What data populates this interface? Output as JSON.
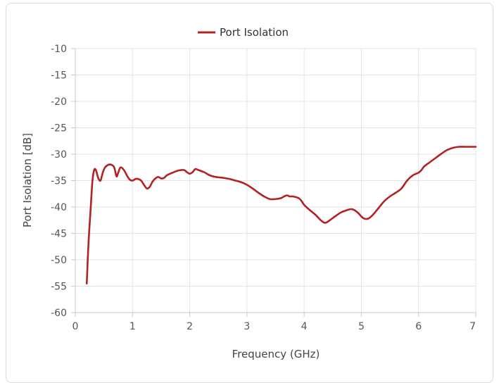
{
  "chart_data": {
    "type": "line",
    "xlabel": "Frequency (GHz)",
    "ylabel": "Port Isolation [dB]",
    "xlim": [
      0,
      7
    ],
    "ylim": [
      -60,
      -10
    ],
    "xticks": [
      0,
      1,
      2,
      3,
      4,
      5,
      6,
      7
    ],
    "yticks": [
      -10,
      -15,
      -20,
      -25,
      -30,
      -35,
      -40,
      -45,
      -50,
      -55,
      -60
    ],
    "grid": true,
    "legend": "top-center",
    "series": [
      {
        "name": "Port Isolation",
        "color": "#b22222",
        "x": [
          0.2,
          0.23,
          0.27,
          0.3,
          0.33,
          0.36,
          0.4,
          0.44,
          0.48,
          0.52,
          0.58,
          0.63,
          0.68,
          0.72,
          0.75,
          0.79,
          0.85,
          0.9,
          0.95,
          1.0,
          1.05,
          1.1,
          1.15,
          1.2,
          1.25,
          1.3,
          1.35,
          1.4,
          1.45,
          1.5,
          1.55,
          1.6,
          1.7,
          1.8,
          1.9,
          1.95,
          2.0,
          2.05,
          2.1,
          2.15,
          2.25,
          2.35,
          2.45,
          2.6,
          2.7,
          2.8,
          2.9,
          3.0,
          3.1,
          3.2,
          3.3,
          3.4,
          3.5,
          3.6,
          3.65,
          3.7,
          3.75,
          3.8,
          3.9,
          3.95,
          4.0,
          4.1,
          4.2,
          4.3,
          4.37,
          4.45,
          4.55,
          4.65,
          4.75,
          4.82,
          4.88,
          4.95,
          5.0,
          5.05,
          5.12,
          5.2,
          5.3,
          5.4,
          5.5,
          5.6,
          5.7,
          5.8,
          5.9,
          6.0,
          6.05,
          6.1,
          6.2,
          6.3,
          6.4,
          6.5,
          6.6,
          6.7,
          6.8,
          6.85,
          6.9,
          6.95,
          7.0
        ],
        "y": [
          -54.5,
          -47.0,
          -40.0,
          -35.0,
          -33.0,
          -33.0,
          -34.5,
          -35.0,
          -33.5,
          -32.5,
          -32.0,
          -32.0,
          -32.5,
          -34.2,
          -33.5,
          -32.5,
          -33.0,
          -34.0,
          -34.8,
          -35.0,
          -34.7,
          -34.7,
          -35.0,
          -35.8,
          -36.5,
          -36.2,
          -35.2,
          -34.6,
          -34.3,
          -34.6,
          -34.5,
          -34.0,
          -33.5,
          -33.1,
          -33.0,
          -33.4,
          -33.7,
          -33.4,
          -32.8,
          -33.0,
          -33.4,
          -34.0,
          -34.3,
          -34.5,
          -34.7,
          -35.0,
          -35.3,
          -35.8,
          -36.5,
          -37.3,
          -38.0,
          -38.5,
          -38.5,
          -38.3,
          -38.0,
          -37.8,
          -38.0,
          -38.0,
          -38.3,
          -38.8,
          -39.6,
          -40.6,
          -41.5,
          -42.6,
          -43.0,
          -42.5,
          -41.7,
          -41.0,
          -40.6,
          -40.4,
          -40.6,
          -41.2,
          -41.8,
          -42.2,
          -42.2,
          -41.5,
          -40.2,
          -38.9,
          -38.0,
          -37.3,
          -36.5,
          -35.0,
          -34.0,
          -33.5,
          -33.0,
          -32.3,
          -31.5,
          -30.7,
          -29.9,
          -29.2,
          -28.8,
          -28.6,
          -28.6,
          -28.6,
          -28.6,
          -28.6,
          -28.6
        ]
      }
    ]
  }
}
